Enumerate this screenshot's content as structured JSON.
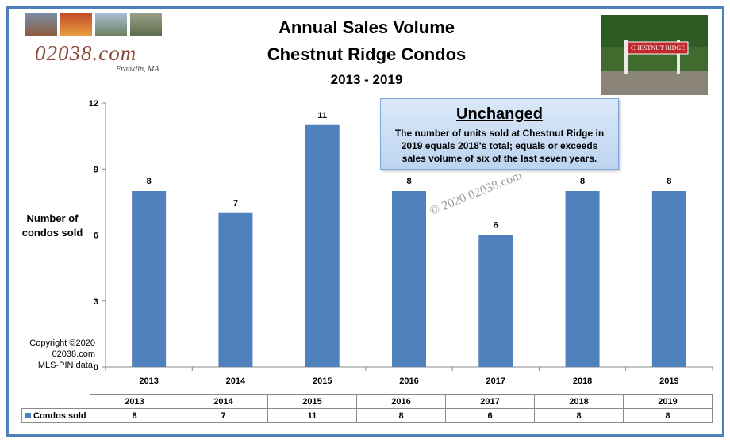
{
  "logo": {
    "text": "02038.com",
    "subtext": "Franklin, MA"
  },
  "titles": {
    "line1": "Annual Sales Volume",
    "line2": "Chestnut Ridge Condos",
    "line3": "2013 - 2019"
  },
  "sign_text": "CHESTNUT RIDGE",
  "ylabel": "Number  of condos sold",
  "copyright": {
    "l1": "Copyright ©2020",
    "l2": "02038.com",
    "l3": "MLS-PIN data."
  },
  "callout": {
    "title": "Unchanged",
    "body": "The number of units sold at Chestnut Ridge in 2019 equals 2018's total; equals or exceeds sales volume of six of the last seven years."
  },
  "watermark": "© 2020 02038.com",
  "colors": {
    "bar": "#4f81bd",
    "frame": "#4f81bd"
  },
  "chart_data": {
    "type": "bar",
    "categories": [
      "2013",
      "2014",
      "2015",
      "2016",
      "2017",
      "2018",
      "2019"
    ],
    "series": [
      {
        "name": "Condos sold",
        "values": [
          8,
          7,
          11,
          8,
          6,
          8,
          8
        ]
      }
    ],
    "title": "Annual Sales Volume",
    "subtitle": "Chestnut Ridge Condos 2013 - 2019",
    "xlabel": "",
    "ylabel": "Number  of condos sold",
    "ylim": [
      0,
      12
    ],
    "yticks": [
      0,
      3,
      6,
      9,
      12
    ],
    "grid": false,
    "legend": "data-table"
  }
}
